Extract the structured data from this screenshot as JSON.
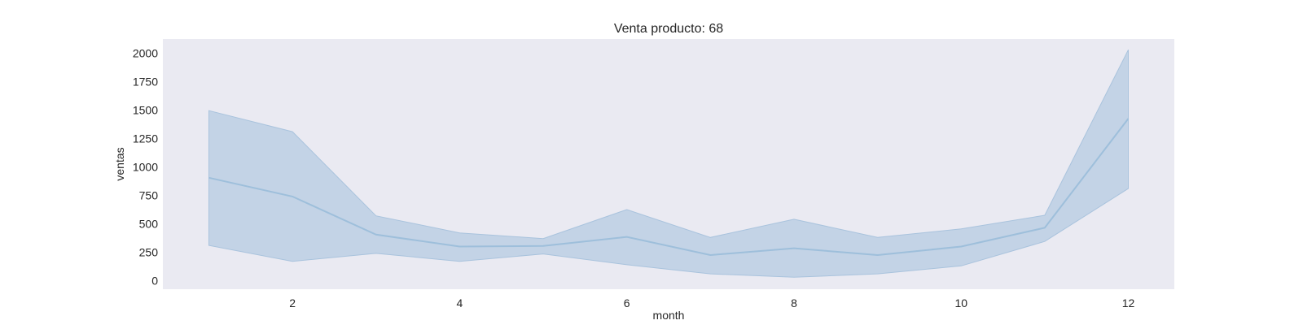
{
  "chart_data": {
    "type": "line",
    "title": "Venta producto: 68",
    "xlabel": "month",
    "ylabel": "ventas",
    "x": [
      1,
      2,
      3,
      4,
      5,
      6,
      7,
      8,
      9,
      10,
      11,
      12
    ],
    "series": [
      {
        "values": [
          905,
          740,
          405,
          300,
          305,
          385,
          225,
          285,
          225,
          300,
          465,
          1425
        ],
        "ci_lower": [
          310,
          170,
          240,
          170,
          235,
          140,
          60,
          30,
          60,
          130,
          345,
          810
        ],
        "ci_upper": [
          1495,
          1310,
          570,
          420,
          370,
          625,
          380,
          540,
          380,
          455,
          575,
          2030
        ]
      }
    ],
    "xlim": [
      0.45,
      12.55
    ],
    "ylim": [
      -75,
      2125
    ],
    "xticks": [
      2,
      4,
      6,
      8,
      10,
      12
    ],
    "yticks": [
      0,
      250,
      500,
      750,
      1000,
      1250,
      1500,
      1750,
      2000
    ],
    "grid": false,
    "colors": {
      "plot_bg": "#eaeaf2",
      "line": "#9ebfdb",
      "band": "#a9c3dd"
    }
  }
}
